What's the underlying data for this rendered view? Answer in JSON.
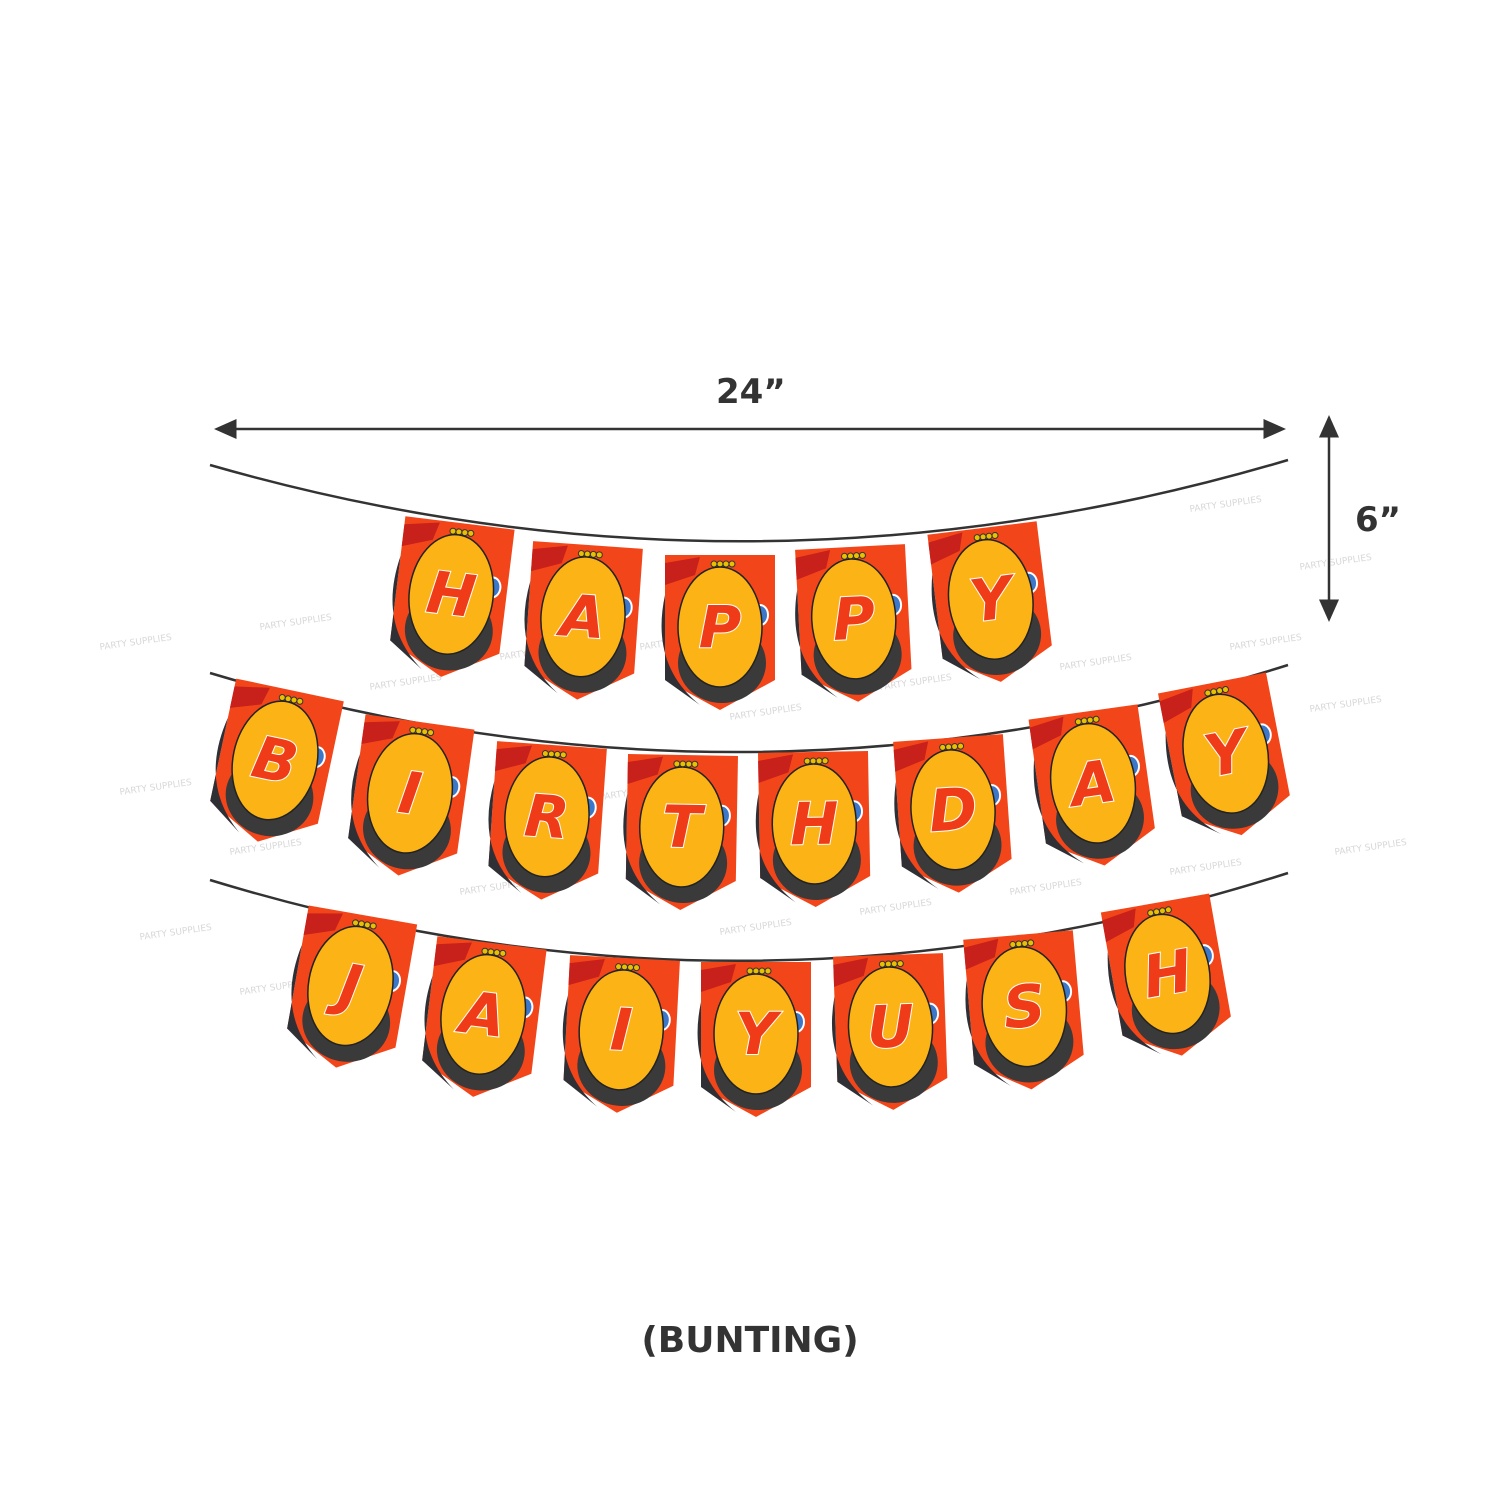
{
  "dimensions": {
    "width_label": "24”",
    "height_label": "6”"
  },
  "caption": "(BUNTING)",
  "watermark": "PARTY SUPPLIES",
  "bunting": {
    "rows": [
      {
        "letters": [
          "H",
          "A",
          "P",
          "P",
          "Y"
        ]
      },
      {
        "letters": [
          "B",
          "I",
          "R",
          "T",
          "H",
          "D",
          "A",
          "Y"
        ]
      },
      {
        "letters": [
          "J",
          "A",
          "I",
          "Y",
          "U",
          "S",
          "H"
        ]
      }
    ]
  },
  "colors": {
    "flag": "#f2461a",
    "oval": "#fbb316",
    "letter": "#ef3b17",
    "tire": "#3a3a3a",
    "string": "#333333",
    "text": "#333333"
  }
}
